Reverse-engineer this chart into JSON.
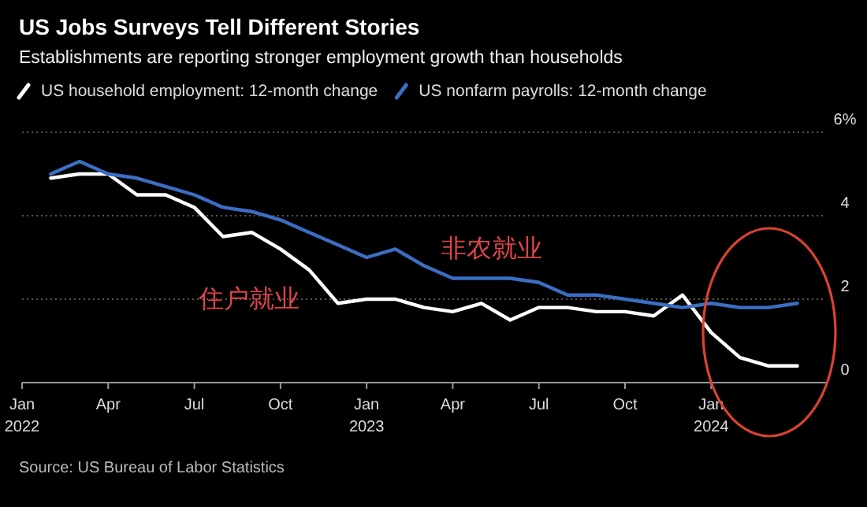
{
  "chart_data": {
    "type": "line",
    "title": "US Jobs Surveys Tell Different Stories",
    "subtitle": "Establishments are reporting stronger employment growth than households",
    "x": [
      "2022-02",
      "2022-03",
      "2022-04",
      "2022-05",
      "2022-06",
      "2022-07",
      "2022-08",
      "2022-09",
      "2022-10",
      "2022-11",
      "2022-12",
      "2023-01",
      "2023-02",
      "2023-03",
      "2023-04",
      "2023-05",
      "2023-06",
      "2023-07",
      "2023-08",
      "2023-09",
      "2023-10",
      "2023-11",
      "2023-12",
      "2024-01",
      "2024-02",
      "2024-03",
      "2024-04"
    ],
    "series": [
      {
        "name": "US household employment: 12-month change",
        "color": "#ffffff",
        "values": [
          4.9,
          5.0,
          5.0,
          4.5,
          4.5,
          4.2,
          3.5,
          3.6,
          3.2,
          2.7,
          1.9,
          2.0,
          2.0,
          1.8,
          1.7,
          1.9,
          1.5,
          1.8,
          1.8,
          1.7,
          1.7,
          1.6,
          2.1,
          1.2,
          0.6,
          0.4,
          0.4
        ]
      },
      {
        "name": "US nonfarm payrolls: 12-month change",
        "color": "#3a6fc4",
        "values": [
          5.0,
          5.3,
          5.0,
          4.9,
          4.7,
          4.5,
          4.2,
          4.1,
          3.9,
          3.6,
          3.3,
          3.0,
          3.2,
          2.8,
          2.5,
          2.5,
          2.5,
          2.4,
          2.1,
          2.1,
          2.0,
          1.9,
          1.8,
          1.9,
          1.8,
          1.8,
          1.9
        ]
      }
    ],
    "xlim": [
      "2022-01",
      "2024-05"
    ],
    "xticks": [
      {
        "value": "2022-01",
        "label": "Jan 2022"
      },
      {
        "value": "2022-04",
        "label": "Apr"
      },
      {
        "value": "2022-07",
        "label": "Jul"
      },
      {
        "value": "2022-10",
        "label": "Oct"
      },
      {
        "value": "2023-01",
        "label": "Jan 2023"
      },
      {
        "value": "2023-04",
        "label": "Apr"
      },
      {
        "value": "2023-07",
        "label": "Jul"
      },
      {
        "value": "2023-10",
        "label": "Oct"
      },
      {
        "value": "2024-01",
        "label": "Jan 2024"
      }
    ],
    "ylim": [
      0,
      6
    ],
    "yticks": [
      0,
      2,
      4,
      {
        "value": 6,
        "label": "6%"
      }
    ],
    "grid": "y",
    "legend": "top left",
    "line_style": "solid",
    "marker": "none",
    "annotations": [
      "非农就业",
      "住户就业",
      "Source: US Bureau of Labor Statistics"
    ]
  }
}
